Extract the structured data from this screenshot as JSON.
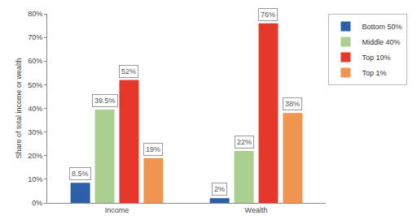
{
  "chart_data": {
    "type": "bar",
    "y_label": "Share of total income or wealth",
    "categories": [
      "Income",
      "Wealth"
    ],
    "series": [
      {
        "name": "Bottom 50%",
        "color": "#2b5fa8",
        "values": [
          8.5,
          2
        ],
        "value_labels": [
          "8.5%",
          "2%"
        ]
      },
      {
        "name": "Middle 40%",
        "color": "#a9d08e",
        "values": [
          39.5,
          22
        ],
        "value_labels": [
          "39.5%",
          "22%"
        ]
      },
      {
        "name": "Top 10%",
        "color": "#e5382a",
        "values": [
          52,
          76
        ],
        "value_labels": [
          "52%",
          "76%"
        ]
      },
      {
        "name": "Top 1%",
        "color": "#ef9550",
        "values": [
          19,
          38
        ],
        "value_labels": [
          "19%",
          "38%"
        ]
      }
    ],
    "ylim": [
      0,
      80
    ],
    "yticks": [
      {
        "value": 0,
        "label": "0%"
      },
      {
        "value": 10,
        "label": "10%"
      },
      {
        "value": 20,
        "label": "20%"
      },
      {
        "value": 30,
        "label": "30%"
      },
      {
        "value": 40,
        "label": "40%"
      },
      {
        "value": 50,
        "label": "50%"
      },
      {
        "value": 60,
        "label": "60%"
      },
      {
        "value": 70,
        "label": "70%"
      },
      {
        "value": 80,
        "label": "80%"
      }
    ],
    "grid": false,
    "legend": "right",
    "data_labels": true
  }
}
